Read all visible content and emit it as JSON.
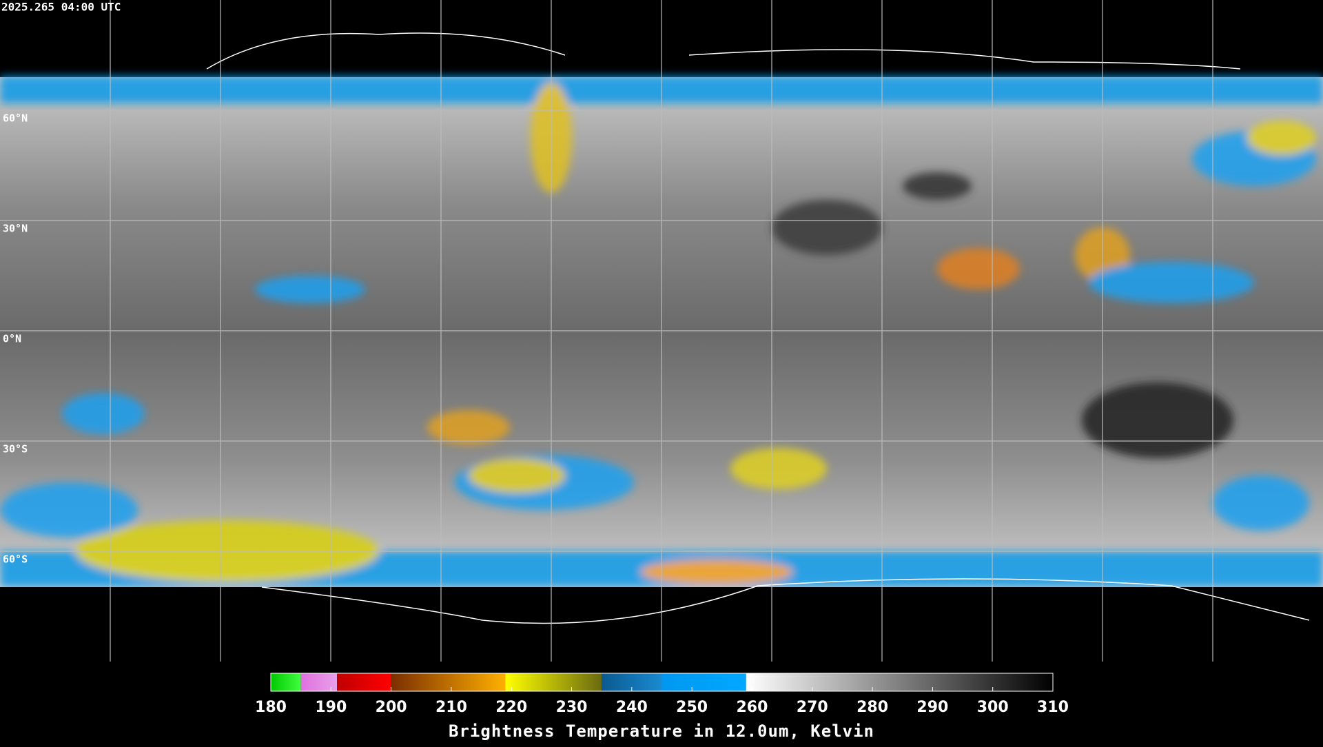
{
  "timestamp": "2025.265 04:00 UTC",
  "lat_lines": [
    {
      "value": 60,
      "label": "60°N"
    },
    {
      "value": 30,
      "label": "30°N"
    },
    {
      "value": 0,
      "label": "0°N"
    },
    {
      "value": -30,
      "label": "30°S"
    },
    {
      "value": -60,
      "label": "60°S"
    }
  ],
  "colorbar": {
    "range": [
      180,
      310
    ],
    "ticks": [
      180,
      190,
      200,
      210,
      220,
      230,
      240,
      250,
      260,
      270,
      280,
      290,
      300,
      310
    ],
    "segments": [
      {
        "from": 180,
        "to": 185,
        "colors": [
          "#00c800",
          "#40ff40"
        ]
      },
      {
        "from": 185,
        "to": 191,
        "colors": [
          "#e070e0",
          "#e8a0e8"
        ]
      },
      {
        "from": 191,
        "to": 200,
        "colors": [
          "#c00000",
          "#ff0000"
        ]
      },
      {
        "from": 200,
        "to": 219,
        "colors": [
          "#7a2e00",
          "#ffb000"
        ]
      },
      {
        "from": 219,
        "to": 235,
        "colors": [
          "#ffff00",
          "#6a6a10"
        ]
      },
      {
        "from": 235,
        "to": 245,
        "colors": [
          "#0a5a90",
          "#1a8ad0"
        ]
      },
      {
        "from": 245,
        "to": 259,
        "colors": [
          "#0098f0",
          "#00a8ff"
        ]
      },
      {
        "from": 259,
        "to": 310,
        "colors": [
          "#ffffff",
          "#000000"
        ]
      }
    ],
    "caption": "Brightness Temperature in 12.0um, Kelvin"
  }
}
